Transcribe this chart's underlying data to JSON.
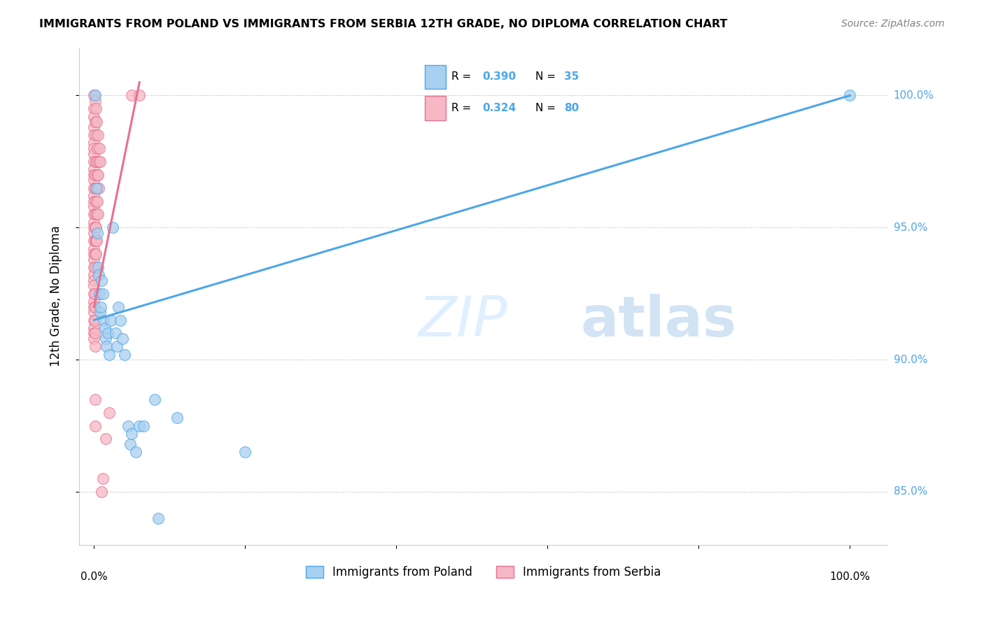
{
  "title": "IMMIGRANTS FROM POLAND VS IMMIGRANTS FROM SERBIA 12TH GRADE, NO DIPLOMA CORRELATION CHART",
  "source": "Source: ZipAtlas.com",
  "ylabel": "12th Grade, No Diploma",
  "ytick_vals": [
    85.0,
    90.0,
    95.0,
    100.0
  ],
  "ytick_labels": [
    "85.0%",
    "90.0%",
    "95.0%",
    "100.0%"
  ],
  "watermark_zip": "ZIP",
  "watermark_atlas": "atlas",
  "legend_blue_r": "0.390",
  "legend_blue_n": "35",
  "legend_pink_r": "0.324",
  "legend_pink_n": "80",
  "legend_label_blue": "Immigrants from Poland",
  "legend_label_pink": "Immigrants from Serbia",
  "blue_fill": "#a8d0f0",
  "blue_edge": "#4da6e8",
  "pink_fill": "#f5b8c4",
  "pink_edge": "#e87090",
  "blue_line_color": "#4da6e8",
  "pink_line_color": "#e87090",
  "legend_text_color": "#4da6e8",
  "right_axis_color": "#4da6e8",
  "blue_scatter": [
    [
      0.001,
      100.0
    ],
    [
      0.003,
      96.5
    ],
    [
      0.004,
      94.8
    ],
    [
      0.005,
      93.5
    ],
    [
      0.006,
      93.2
    ],
    [
      0.007,
      92.5
    ],
    [
      0.008,
      91.8
    ],
    [
      0.009,
      92.0
    ],
    [
      0.01,
      93.0
    ],
    [
      0.012,
      92.5
    ],
    [
      0.013,
      91.5
    ],
    [
      0.014,
      91.2
    ],
    [
      0.015,
      90.8
    ],
    [
      0.016,
      90.5
    ],
    [
      0.018,
      91.0
    ],
    [
      0.02,
      90.2
    ],
    [
      0.022,
      91.5
    ],
    [
      0.025,
      95.0
    ],
    [
      0.028,
      91.0
    ],
    [
      0.03,
      90.5
    ],
    [
      0.032,
      92.0
    ],
    [
      0.035,
      91.5
    ],
    [
      0.038,
      90.8
    ],
    [
      0.04,
      90.2
    ],
    [
      0.045,
      87.5
    ],
    [
      0.048,
      86.8
    ],
    [
      0.05,
      87.2
    ],
    [
      0.055,
      86.5
    ],
    [
      0.06,
      87.5
    ],
    [
      0.065,
      87.5
    ],
    [
      0.08,
      88.5
    ],
    [
      0.085,
      84.0
    ],
    [
      0.11,
      87.8
    ],
    [
      0.2,
      86.5
    ],
    [
      1.0,
      100.0
    ]
  ],
  "pink_scatter": [
    [
      0.0,
      100.0
    ],
    [
      0.0,
      99.5
    ],
    [
      0.0,
      99.2
    ],
    [
      0.0,
      98.8
    ],
    [
      0.0,
      98.5
    ],
    [
      0.0,
      98.2
    ],
    [
      0.0,
      98.0
    ],
    [
      0.0,
      97.8
    ],
    [
      0.0,
      97.5
    ],
    [
      0.0,
      97.2
    ],
    [
      0.0,
      97.0
    ],
    [
      0.0,
      96.8
    ],
    [
      0.0,
      96.5
    ],
    [
      0.0,
      96.2
    ],
    [
      0.0,
      96.0
    ],
    [
      0.0,
      95.8
    ],
    [
      0.0,
      95.5
    ],
    [
      0.0,
      95.2
    ],
    [
      0.0,
      95.0
    ],
    [
      0.0,
      94.8
    ],
    [
      0.0,
      94.5
    ],
    [
      0.0,
      94.2
    ],
    [
      0.0,
      94.0
    ],
    [
      0.0,
      93.8
    ],
    [
      0.0,
      93.5
    ],
    [
      0.0,
      93.2
    ],
    [
      0.0,
      93.0
    ],
    [
      0.0,
      92.8
    ],
    [
      0.0,
      92.5
    ],
    [
      0.0,
      92.2
    ],
    [
      0.0,
      92.0
    ],
    [
      0.0,
      91.8
    ],
    [
      0.0,
      91.5
    ],
    [
      0.0,
      91.2
    ],
    [
      0.0,
      91.0
    ],
    [
      0.0,
      90.8
    ],
    [
      0.001,
      99.8
    ],
    [
      0.001,
      99.0
    ],
    [
      0.001,
      97.0
    ],
    [
      0.001,
      96.5
    ],
    [
      0.001,
      95.5
    ],
    [
      0.001,
      95.0
    ],
    [
      0.001,
      94.5
    ],
    [
      0.001,
      94.0
    ],
    [
      0.001,
      93.5
    ],
    [
      0.001,
      92.5
    ],
    [
      0.001,
      92.0
    ],
    [
      0.001,
      91.5
    ],
    [
      0.001,
      91.0
    ],
    [
      0.001,
      90.5
    ],
    [
      0.001,
      88.5
    ],
    [
      0.001,
      87.5
    ],
    [
      0.002,
      99.5
    ],
    [
      0.002,
      98.5
    ],
    [
      0.002,
      97.5
    ],
    [
      0.002,
      96.0
    ],
    [
      0.002,
      95.0
    ],
    [
      0.002,
      94.5
    ],
    [
      0.002,
      94.0
    ],
    [
      0.003,
      99.0
    ],
    [
      0.003,
      97.5
    ],
    [
      0.003,
      96.5
    ],
    [
      0.003,
      95.5
    ],
    [
      0.003,
      94.5
    ],
    [
      0.004,
      98.0
    ],
    [
      0.004,
      97.0
    ],
    [
      0.004,
      96.0
    ],
    [
      0.005,
      98.5
    ],
    [
      0.005,
      97.0
    ],
    [
      0.005,
      95.5
    ],
    [
      0.006,
      97.5
    ],
    [
      0.006,
      96.5
    ],
    [
      0.007,
      98.0
    ],
    [
      0.008,
      97.5
    ],
    [
      0.01,
      85.0
    ],
    [
      0.012,
      85.5
    ],
    [
      0.015,
      87.0
    ],
    [
      0.02,
      88.0
    ],
    [
      0.05,
      100.0
    ],
    [
      0.06,
      100.0
    ]
  ],
  "blue_line_x": [
    0.0,
    1.0
  ],
  "blue_line_y": [
    91.5,
    100.0
  ],
  "pink_line_x": [
    0.0,
    0.06
  ],
  "pink_line_y": [
    92.0,
    100.5
  ],
  "xlim": [
    -0.02,
    1.05
  ],
  "ylim": [
    83.0,
    101.8
  ]
}
